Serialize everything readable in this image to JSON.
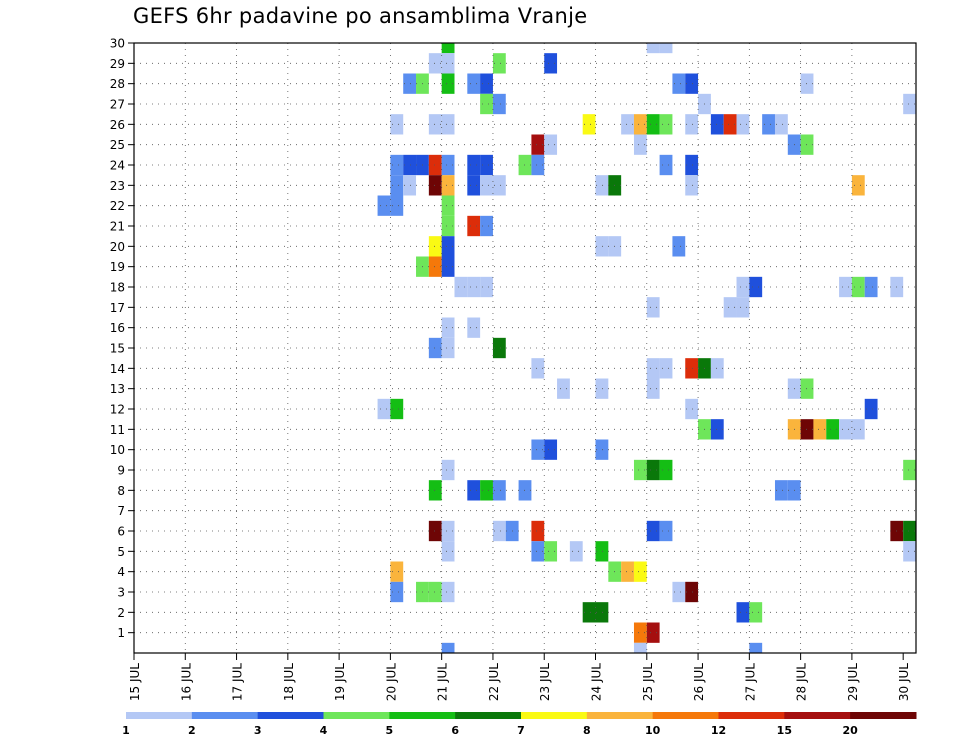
{
  "chart_data": {
    "type": "heatmap",
    "title": "GEFS 6hr padavine po ansamblima Vranje",
    "xlabel": "",
    "ylabel": "",
    "x_ticks": [
      "15 JUL",
      "16 JUL",
      "17 JUL",
      "18 JUL",
      "19 JUL",
      "20 JUL",
      "21 JUL",
      "22 JUL",
      "23 JUL",
      "24 JUL",
      "25 JUL",
      "26 JUL",
      "27 JUL",
      "28 JUL",
      "29 JUL",
      "30 JUL"
    ],
    "y_ticks": [
      "1",
      "2",
      "3",
      "4",
      "5",
      "6",
      "7",
      "8",
      "9",
      "10",
      "11",
      "12",
      "13",
      "14",
      "15",
      "16",
      "17",
      "18",
      "19",
      "20",
      "21",
      "22",
      "23",
      "24",
      "25",
      "26",
      "27",
      "28",
      "29",
      "30"
    ],
    "xlim": [
      0,
      61
    ],
    "ylim": [
      0,
      30
    ],
    "x_unit": "6h steps from 15 JUL 00z",
    "grid": true,
    "legend": {
      "position": "bottom",
      "colors": [
        "#b4c8f5",
        "#5a8ef0",
        "#1f50dc",
        "#6ee65a",
        "#14be14",
        "#0a780a",
        "#fafa14",
        "#fab43c",
        "#f5780a",
        "#dc2d0a",
        "#a50f0f",
        "#6e0505"
      ],
      "labels": [
        "1",
        "2",
        "3",
        "4",
        "5",
        "6",
        "7",
        "8",
        "10",
        "12",
        "15",
        "20"
      ]
    },
    "cells": [
      {
        "x": 24.5,
        "y": 30,
        "c": 5
      },
      {
        "x": 40.5,
        "y": 30,
        "c": 1
      },
      {
        "x": 41.5,
        "y": 30,
        "c": 1
      },
      {
        "x": 23.5,
        "y": 29,
        "c": 1
      },
      {
        "x": 24.5,
        "y": 29,
        "c": 1
      },
      {
        "x": 28.5,
        "y": 29,
        "c": 4
      },
      {
        "x": 32.5,
        "y": 29,
        "c": 3
      },
      {
        "x": 21.5,
        "y": 28,
        "c": 2
      },
      {
        "x": 22.5,
        "y": 28,
        "c": 4
      },
      {
        "x": 24.5,
        "y": 28,
        "c": 5
      },
      {
        "x": 26.5,
        "y": 28,
        "c": 2
      },
      {
        "x": 27.5,
        "y": 28,
        "c": 3
      },
      {
        "x": 42.5,
        "y": 28,
        "c": 2
      },
      {
        "x": 43.5,
        "y": 28,
        "c": 3
      },
      {
        "x": 52.5,
        "y": 28,
        "c": 1
      },
      {
        "x": 27.5,
        "y": 27,
        "c": 4
      },
      {
        "x": 28.5,
        "y": 27,
        "c": 2
      },
      {
        "x": 44.5,
        "y": 27,
        "c": 1
      },
      {
        "x": 60.5,
        "y": 27,
        "c": 1
      },
      {
        "x": 20.5,
        "y": 26,
        "c": 1
      },
      {
        "x": 23.5,
        "y": 26,
        "c": 1
      },
      {
        "x": 24.5,
        "y": 26,
        "c": 1
      },
      {
        "x": 35.5,
        "y": 26,
        "c": 7
      },
      {
        "x": 38.5,
        "y": 26,
        "c": 1
      },
      {
        "x": 39.5,
        "y": 26,
        "c": 8
      },
      {
        "x": 40.5,
        "y": 26,
        "c": 5
      },
      {
        "x": 41.5,
        "y": 26,
        "c": 4
      },
      {
        "x": 43.5,
        "y": 26,
        "c": 1
      },
      {
        "x": 45.5,
        "y": 26,
        "c": 3
      },
      {
        "x": 46.5,
        "y": 26,
        "c": 10
      },
      {
        "x": 47.5,
        "y": 26,
        "c": 1
      },
      {
        "x": 49.5,
        "y": 26,
        "c": 2
      },
      {
        "x": 50.5,
        "y": 26,
        "c": 1
      },
      {
        "x": 31.5,
        "y": 25,
        "c": 11
      },
      {
        "x": 32.5,
        "y": 25,
        "c": 1
      },
      {
        "x": 39.5,
        "y": 25,
        "c": 1
      },
      {
        "x": 51.5,
        "y": 25,
        "c": 2
      },
      {
        "x": 52.5,
        "y": 25,
        "c": 4
      },
      {
        "x": 20.5,
        "y": 24,
        "c": 2
      },
      {
        "x": 21.5,
        "y": 24,
        "c": 3
      },
      {
        "x": 22.5,
        "y": 24,
        "c": 3
      },
      {
        "x": 23.5,
        "y": 24,
        "c": 10
      },
      {
        "x": 24.5,
        "y": 24,
        "c": 2
      },
      {
        "x": 26.5,
        "y": 24,
        "c": 3
      },
      {
        "x": 27.5,
        "y": 24,
        "c": 3
      },
      {
        "x": 30.5,
        "y": 24,
        "c": 4
      },
      {
        "x": 31.5,
        "y": 24,
        "c": 2
      },
      {
        "x": 41.5,
        "y": 24,
        "c": 2
      },
      {
        "x": 43.5,
        "y": 24,
        "c": 3
      },
      {
        "x": 20.5,
        "y": 23,
        "c": 2
      },
      {
        "x": 21.5,
        "y": 23,
        "c": 1
      },
      {
        "x": 23.5,
        "y": 23,
        "c": 12
      },
      {
        "x": 24.5,
        "y": 23,
        "c": 8
      },
      {
        "x": 26.5,
        "y": 23,
        "c": 3
      },
      {
        "x": 27.5,
        "y": 23,
        "c": 1
      },
      {
        "x": 28.5,
        "y": 23,
        "c": 1
      },
      {
        "x": 36.5,
        "y": 23,
        "c": 1
      },
      {
        "x": 37.5,
        "y": 23,
        "c": 6
      },
      {
        "x": 43.5,
        "y": 23,
        "c": 1
      },
      {
        "x": 56.5,
        "y": 23,
        "c": 8
      },
      {
        "x": 19.5,
        "y": 22,
        "c": 2
      },
      {
        "x": 20.5,
        "y": 22,
        "c": 2
      },
      {
        "x": 24.5,
        "y": 22,
        "c": 4
      },
      {
        "x": 24.5,
        "y": 21,
        "c": 4
      },
      {
        "x": 26.5,
        "y": 21,
        "c": 10
      },
      {
        "x": 27.5,
        "y": 21,
        "c": 2
      },
      {
        "x": 23.5,
        "y": 20,
        "c": 7
      },
      {
        "x": 24.5,
        "y": 20,
        "c": 3
      },
      {
        "x": 36.5,
        "y": 20,
        "c": 1
      },
      {
        "x": 37.5,
        "y": 20,
        "c": 1
      },
      {
        "x": 42.5,
        "y": 20,
        "c": 2
      },
      {
        "x": 22.5,
        "y": 19,
        "c": 4
      },
      {
        "x": 23.5,
        "y": 19,
        "c": 9
      },
      {
        "x": 24.5,
        "y": 19,
        "c": 3
      },
      {
        "x": 25.5,
        "y": 18,
        "c": 1
      },
      {
        "x": 26.5,
        "y": 18,
        "c": 1
      },
      {
        "x": 27.5,
        "y": 18,
        "c": 1
      },
      {
        "x": 47.5,
        "y": 18,
        "c": 1
      },
      {
        "x": 48.5,
        "y": 18,
        "c": 3
      },
      {
        "x": 55.5,
        "y": 18,
        "c": 1
      },
      {
        "x": 56.5,
        "y": 18,
        "c": 4
      },
      {
        "x": 57.5,
        "y": 18,
        "c": 2
      },
      {
        "x": 59.5,
        "y": 18,
        "c": 1
      },
      {
        "x": 40.5,
        "y": 17,
        "c": 1
      },
      {
        "x": 46.5,
        "y": 17,
        "c": 1
      },
      {
        "x": 47.5,
        "y": 17,
        "c": 1
      },
      {
        "x": 24.5,
        "y": 16,
        "c": 1
      },
      {
        "x": 26.5,
        "y": 16,
        "c": 1
      },
      {
        "x": 23.5,
        "y": 15,
        "c": 2
      },
      {
        "x": 24.5,
        "y": 15,
        "c": 1
      },
      {
        "x": 28.5,
        "y": 15,
        "c": 6
      },
      {
        "x": 31.5,
        "y": 14,
        "c": 1
      },
      {
        "x": 40.5,
        "y": 14,
        "c": 1
      },
      {
        "x": 41.5,
        "y": 14,
        "c": 1
      },
      {
        "x": 43.5,
        "y": 14,
        "c": 10
      },
      {
        "x": 44.5,
        "y": 14,
        "c": 6
      },
      {
        "x": 45.5,
        "y": 14,
        "c": 1
      },
      {
        "x": 33.5,
        "y": 13,
        "c": 1
      },
      {
        "x": 36.5,
        "y": 13,
        "c": 1
      },
      {
        "x": 40.5,
        "y": 13,
        "c": 1
      },
      {
        "x": 51.5,
        "y": 13,
        "c": 1
      },
      {
        "x": 52.5,
        "y": 13,
        "c": 4
      },
      {
        "x": 19.5,
        "y": 12,
        "c": 1
      },
      {
        "x": 20.5,
        "y": 12,
        "c": 5
      },
      {
        "x": 43.5,
        "y": 12,
        "c": 1
      },
      {
        "x": 57.5,
        "y": 12,
        "c": 3
      },
      {
        "x": 44.5,
        "y": 11,
        "c": 4
      },
      {
        "x": 45.5,
        "y": 11,
        "c": 3
      },
      {
        "x": 51.5,
        "y": 11,
        "c": 8
      },
      {
        "x": 52.5,
        "y": 11,
        "c": 12
      },
      {
        "x": 53.5,
        "y": 11,
        "c": 8
      },
      {
        "x": 54.5,
        "y": 11,
        "c": 5
      },
      {
        "x": 55.5,
        "y": 11,
        "c": 1
      },
      {
        "x": 56.5,
        "y": 11,
        "c": 1
      },
      {
        "x": 31.5,
        "y": 10,
        "c": 2
      },
      {
        "x": 32.5,
        "y": 10,
        "c": 3
      },
      {
        "x": 36.5,
        "y": 10,
        "c": 2
      },
      {
        "x": 24.5,
        "y": 9,
        "c": 1
      },
      {
        "x": 39.5,
        "y": 9,
        "c": 4
      },
      {
        "x": 40.5,
        "y": 9,
        "c": 6
      },
      {
        "x": 41.5,
        "y": 9,
        "c": 5
      },
      {
        "x": 60.5,
        "y": 9,
        "c": 4
      },
      {
        "x": 23.5,
        "y": 8,
        "c": 5
      },
      {
        "x": 26.5,
        "y": 8,
        "c": 3
      },
      {
        "x": 27.5,
        "y": 8,
        "c": 5
      },
      {
        "x": 28.5,
        "y": 8,
        "c": 2
      },
      {
        "x": 30.5,
        "y": 8,
        "c": 2
      },
      {
        "x": 50.5,
        "y": 8,
        "c": 2
      },
      {
        "x": 51.5,
        "y": 8,
        "c": 2
      },
      {
        "x": 23.5,
        "y": 6,
        "c": 12
      },
      {
        "x": 24.5,
        "y": 6,
        "c": 1
      },
      {
        "x": 28.5,
        "y": 6,
        "c": 1
      },
      {
        "x": 29.5,
        "y": 6,
        "c": 2
      },
      {
        "x": 31.5,
        "y": 6,
        "c": 10
      },
      {
        "x": 40.5,
        "y": 6,
        "c": 3
      },
      {
        "x": 41.5,
        "y": 6,
        "c": 2
      },
      {
        "x": 59.5,
        "y": 6,
        "c": 12
      },
      {
        "x": 60.5,
        "y": 6,
        "c": 6
      },
      {
        "x": 24.5,
        "y": 5,
        "c": 1
      },
      {
        "x": 31.5,
        "y": 5,
        "c": 2
      },
      {
        "x": 32.5,
        "y": 5,
        "c": 4
      },
      {
        "x": 34.5,
        "y": 5,
        "c": 1
      },
      {
        "x": 36.5,
        "y": 5,
        "c": 5
      },
      {
        "x": 60.5,
        "y": 5,
        "c": 1
      },
      {
        "x": 20.5,
        "y": 4,
        "c": 8
      },
      {
        "x": 37.5,
        "y": 4,
        "c": 4
      },
      {
        "x": 38.5,
        "y": 4,
        "c": 8
      },
      {
        "x": 39.5,
        "y": 4,
        "c": 7
      },
      {
        "x": 20.5,
        "y": 3,
        "c": 2
      },
      {
        "x": 22.5,
        "y": 3,
        "c": 4
      },
      {
        "x": 23.5,
        "y": 3,
        "c": 4
      },
      {
        "x": 24.5,
        "y": 3,
        "c": 1
      },
      {
        "x": 42.5,
        "y": 3,
        "c": 1
      },
      {
        "x": 43.5,
        "y": 3,
        "c": 12
      },
      {
        "x": 35.5,
        "y": 2,
        "c": 6
      },
      {
        "x": 36.5,
        "y": 2,
        "c": 6
      },
      {
        "x": 47.5,
        "y": 2,
        "c": 3
      },
      {
        "x": 48.5,
        "y": 2,
        "c": 4
      },
      {
        "x": 39.5,
        "y": 1,
        "c": 9
      },
      {
        "x": 40.5,
        "y": 1,
        "c": 11
      },
      {
        "x": 24.5,
        "y": 0,
        "c": 2
      },
      {
        "x": 39.5,
        "y": 0,
        "c": 1
      },
      {
        "x": 48.5,
        "y": 0,
        "c": 2
      }
    ]
  }
}
